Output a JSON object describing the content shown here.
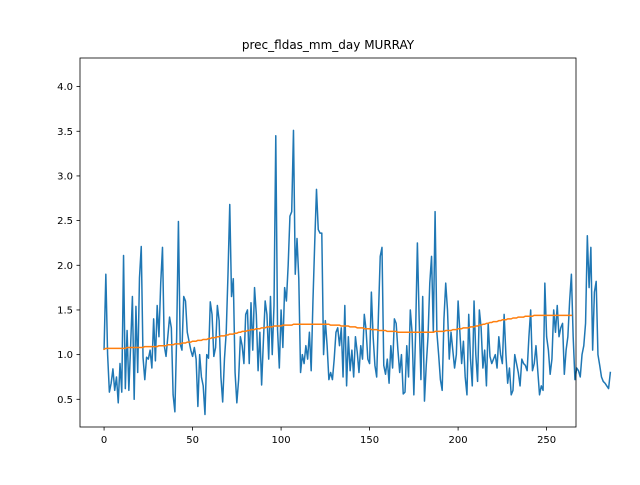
{
  "chart_data": {
    "type": "line",
    "title": "prec_fldas_mm_day MURRAY",
    "xlabel": "",
    "ylabel": "",
    "xlim": [
      -13.6,
      266.6
    ],
    "ylim": [
      0.19,
      4.32
    ],
    "x_ticks": [
      0,
      50,
      100,
      150,
      200,
      250
    ],
    "y_ticks": [
      0.5,
      1.0,
      1.5,
      2.0,
      2.5,
      3.0,
      3.5,
      4.0
    ],
    "y_tick_labels": [
      "0.5",
      "1.0",
      "1.5",
      "2.0",
      "2.5",
      "3.0",
      "3.5",
      "4.0"
    ],
    "grid": false,
    "legend": "none",
    "series": [
      {
        "color": "#1f77b4",
        "y": [
          1.06,
          1.9,
          1.0,
          0.58,
          0.68,
          0.84,
          0.6,
          0.75,
          0.46,
          0.9,
          0.58,
          2.11,
          0.62,
          1.27,
          0.6,
          1.1,
          1.65,
          0.5,
          1.54,
          0.8,
          1.86,
          2.21,
          0.97,
          0.72,
          0.97,
          0.95,
          1.05,
          0.85,
          1.4,
          0.93,
          1.55,
          1.2,
          1.8,
          2.2,
          1.1,
          0.98,
          1.2,
          1.42,
          1.3,
          0.55,
          0.36,
          1.2,
          2.49,
          1.12,
          1.05,
          1.65,
          1.6,
          1.25,
          1.15,
          1.05,
          0.98,
          1.08,
          0.95,
          0.42,
          1.0,
          0.75,
          0.65,
          0.33,
          1.0,
          0.96,
          1.59,
          1.45,
          0.98,
          1.08,
          1.55,
          1.38,
          0.75,
          0.47,
          0.95,
          1.25,
          1.9,
          2.68,
          1.65,
          1.85,
          0.8,
          0.46,
          0.72,
          1.2,
          1.1,
          0.9,
          1.45,
          1.5,
          0.9,
          1.58,
          1.05,
          1.75,
          1.45,
          0.82,
          1.25,
          0.66,
          1.15,
          1.6,
          1.45,
          0.95,
          1.65,
          1.0,
          1.55,
          3.45,
          1.28,
          0.85,
          1.5,
          1.08,
          1.75,
          1.6,
          2.0,
          2.55,
          2.6,
          3.51,
          1.9,
          2.3,
          1.85,
          0.8,
          1.0,
          0.9,
          1.1,
          0.95,
          1.25,
          0.82,
          1.6,
          2.25,
          2.85,
          2.4,
          2.36,
          2.36,
          1.0,
          1.38,
          1.1,
          0.72,
          0.8,
          0.72,
          0.95,
          1.25,
          1.3,
          1.1,
          1.3,
          0.75,
          1.55,
          0.65,
          1.2,
          0.82,
          1.05,
          0.75,
          1.2,
          1.03,
          0.8,
          1.1,
          0.95,
          1.45,
          1.28,
          0.95,
          0.9,
          1.7,
          1.2,
          0.88,
          0.75,
          1.45,
          2.1,
          2.2,
          0.88,
          0.78,
          0.95,
          0.68,
          1.1,
          0.85,
          1.4,
          1.35,
          1.05,
          0.8,
          1.0,
          0.56,
          0.58,
          1.1,
          0.75,
          1.5,
          1.25,
          0.55,
          1.25,
          2.25,
          1.4,
          0.72,
          1.65,
          0.48,
          0.88,
          1.2,
          1.8,
          2.1,
          1.25,
          2.6,
          1.25,
          1.0,
          0.72,
          0.6,
          1.4,
          1.8,
          1.5,
          0.95,
          1.25,
          1.05,
          0.85,
          1.0,
          1.6,
          1.25,
          0.9,
          1.15,
          0.75,
          0.55,
          1.45,
          0.95,
          0.65,
          1.6,
          1.0,
          0.7,
          1.5,
          1.3,
          0.85,
          1.05,
          0.65,
          1.35,
          0.98,
          0.9,
          0.95,
          1.0,
          0.85,
          1.2,
          1.0,
          0.9,
          1.45,
          1.0,
          0.68,
          0.85,
          0.55,
          0.6,
          1.0,
          0.9,
          0.8,
          0.65,
          0.95,
          0.9,
          0.88,
          0.82,
          1.2,
          1.5,
          0.82,
          0.9,
          1.1,
          0.82,
          0.55,
          0.65,
          0.6,
          1.8,
          1.2,
          1.05,
          0.78,
          0.95,
          1.5,
          1.25,
          1.55,
          1.2,
          1.3,
          1.35,
          0.78,
          1.05,
          1.2,
          1.6,
          1.9,
          1.2,
          0.72,
          0.85,
          0.82,
          0.75,
          1.0,
          1.1,
          1.35,
          2.33,
          1.75,
          2.2,
          1.05,
          1.7,
          1.82,
          1.0,
          0.88,
          0.75,
          0.7,
          0.68,
          0.65,
          0.62,
          0.8
        ]
      },
      {
        "color": "#ff7f0e",
        "y": [
          1.06,
          1.07,
          1.07,
          1.07,
          1.07,
          1.07,
          1.07,
          1.07,
          1.07,
          1.07,
          1.07,
          1.07,
          1.07,
          1.08,
          1.08,
          1.08,
          1.08,
          1.08,
          1.08,
          1.08,
          1.08,
          1.08,
          1.08,
          1.09,
          1.09,
          1.09,
          1.09,
          1.09,
          1.09,
          1.09,
          1.09,
          1.1,
          1.1,
          1.1,
          1.1,
          1.1,
          1.11,
          1.11,
          1.11,
          1.11,
          1.12,
          1.12,
          1.12,
          1.12,
          1.13,
          1.13,
          1.13,
          1.14,
          1.14,
          1.14,
          1.15,
          1.15,
          1.15,
          1.16,
          1.16,
          1.16,
          1.17,
          1.17,
          1.17,
          1.18,
          1.18,
          1.19,
          1.19,
          1.19,
          1.2,
          1.2,
          1.21,
          1.21,
          1.21,
          1.22,
          1.22,
          1.23,
          1.23,
          1.23,
          1.24,
          1.24,
          1.25,
          1.25,
          1.26,
          1.26,
          1.26,
          1.27,
          1.27,
          1.28,
          1.28,
          1.28,
          1.29,
          1.29,
          1.29,
          1.3,
          1.3,
          1.3,
          1.31,
          1.31,
          1.31,
          1.31,
          1.32,
          1.32,
          1.32,
          1.32,
          1.32,
          1.33,
          1.33,
          1.33,
          1.33,
          1.33,
          1.33,
          1.34,
          1.34,
          1.34,
          1.34,
          1.34,
          1.34,
          1.34,
          1.34,
          1.34,
          1.34,
          1.34,
          1.34,
          1.34,
          1.34,
          1.34,
          1.34,
          1.34,
          1.34,
          1.34,
          1.34,
          1.34,
          1.33,
          1.33,
          1.33,
          1.33,
          1.33,
          1.33,
          1.32,
          1.32,
          1.32,
          1.32,
          1.32,
          1.31,
          1.31,
          1.31,
          1.31,
          1.3,
          1.3,
          1.3,
          1.3,
          1.29,
          1.29,
          1.29,
          1.29,
          1.28,
          1.28,
          1.28,
          1.28,
          1.27,
          1.27,
          1.27,
          1.27,
          1.27,
          1.26,
          1.26,
          1.26,
          1.26,
          1.26,
          1.26,
          1.25,
          1.25,
          1.25,
          1.25,
          1.25,
          1.25,
          1.25,
          1.25,
          1.25,
          1.25,
          1.25,
          1.25,
          1.25,
          1.25,
          1.25,
          1.25,
          1.25,
          1.25,
          1.25,
          1.25,
          1.25,
          1.26,
          1.26,
          1.26,
          1.26,
          1.26,
          1.26,
          1.27,
          1.27,
          1.27,
          1.27,
          1.28,
          1.28,
          1.28,
          1.29,
          1.29,
          1.29,
          1.3,
          1.3,
          1.3,
          1.3,
          1.31,
          1.31,
          1.31,
          1.32,
          1.32,
          1.33,
          1.33,
          1.34,
          1.34,
          1.35,
          1.35,
          1.36,
          1.36,
          1.37,
          1.37,
          1.37,
          1.38,
          1.38,
          1.39,
          1.39,
          1.39,
          1.4,
          1.4,
          1.4,
          1.41,
          1.41,
          1.41,
          1.42,
          1.42,
          1.42,
          1.42,
          1.43,
          1.43,
          1.43,
          1.43,
          1.43,
          1.44,
          1.44,
          1.44,
          1.44,
          1.44,
          1.44,
          1.44,
          1.44,
          1.44,
          1.44,
          1.44,
          1.44,
          1.44,
          1.44,
          1.44,
          1.44,
          1.44,
          1.44,
          1.44,
          1.44,
          1.44,
          1.44
        ]
      }
    ]
  }
}
